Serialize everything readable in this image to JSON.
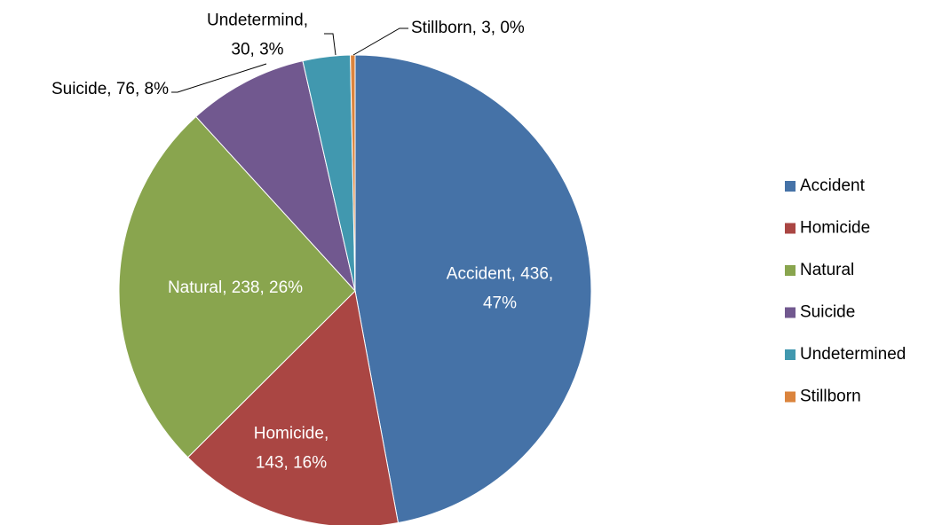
{
  "chart_data": {
    "type": "pie",
    "categories": [
      "Accident",
      "Homicide",
      "Natural",
      "Suicide",
      "Undetermined",
      "Stillborn"
    ],
    "values": [
      436,
      143,
      238,
      76,
      30,
      3
    ],
    "value_labels": [
      [
        "Accident, 436,",
        "47%"
      ],
      [
        "Homicide,",
        "143, 16%"
      ],
      [
        "Natural, 238, 26%"
      ],
      [
        "Suicide, 76, 8%"
      ],
      [
        "Undetermind,",
        "30, 3%"
      ],
      [
        "Stillborn, 3, 0%"
      ]
    ],
    "colors": [
      "#4572A7",
      "#AA4643",
      "#89A54E",
      "#71588F",
      "#4198AF",
      "#DB843D"
    ],
    "legend": "right"
  }
}
